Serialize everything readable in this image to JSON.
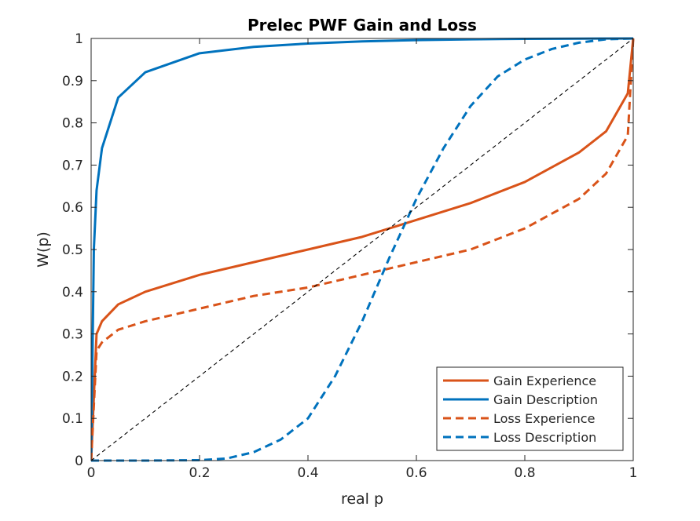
{
  "chart_data": {
    "type": "line",
    "title": "Prelec PWF Gain and Loss",
    "xlabel": "real p",
    "ylabel": "W(p)",
    "xlim": [
      0,
      1
    ],
    "ylim": [
      0,
      1
    ],
    "x_ticks": [
      "0",
      "0.2",
      "0.4",
      "0.6",
      "0.8",
      "1"
    ],
    "y_ticks": [
      "0",
      "0.1",
      "0.2",
      "0.3",
      "0.4",
      "0.5",
      "0.6",
      "0.7",
      "0.8",
      "0.9",
      "1"
    ],
    "grid": false,
    "legend_position": "bottom-right",
    "series": [
      {
        "name": "Gain Experience",
        "color": "#D95319",
        "line_style": "solid",
        "x": [
          0,
          0.01,
          0.02,
          0.05,
          0.1,
          0.2,
          0.3,
          0.4,
          0.5,
          0.6,
          0.7,
          0.8,
          0.9,
          0.95,
          0.99,
          1
        ],
        "y": [
          0,
          0.3,
          0.33,
          0.37,
          0.4,
          0.44,
          0.47,
          0.5,
          0.53,
          0.57,
          0.61,
          0.66,
          0.73,
          0.78,
          0.87,
          1
        ]
      },
      {
        "name": "Gain Description",
        "color": "#0072BD",
        "line_style": "solid",
        "x": [
          0,
          0.005,
          0.01,
          0.02,
          0.05,
          0.1,
          0.2,
          0.3,
          0.4,
          0.5,
          0.6,
          0.7,
          0.8,
          0.9,
          1
        ],
        "y": [
          0,
          0.5,
          0.64,
          0.74,
          0.86,
          0.92,
          0.965,
          0.98,
          0.988,
          0.993,
          0.996,
          0.998,
          0.999,
          0.9995,
          1
        ]
      },
      {
        "name": "Loss Experience",
        "color": "#D95319",
        "line_style": "dashed",
        "x": [
          0,
          0.01,
          0.02,
          0.05,
          0.1,
          0.2,
          0.3,
          0.4,
          0.5,
          0.6,
          0.7,
          0.8,
          0.9,
          0.95,
          0.99,
          1
        ],
        "y": [
          0,
          0.26,
          0.28,
          0.31,
          0.33,
          0.36,
          0.39,
          0.41,
          0.44,
          0.47,
          0.5,
          0.55,
          0.62,
          0.68,
          0.77,
          1
        ]
      },
      {
        "name": "Loss Description",
        "color": "#0072BD",
        "line_style": "dashed",
        "x": [
          0,
          0.1,
          0.2,
          0.25,
          0.3,
          0.35,
          0.4,
          0.45,
          0.5,
          0.55,
          0.6,
          0.65,
          0.7,
          0.75,
          0.8,
          0.85,
          0.9,
          0.95,
          1
        ],
        "y": [
          0,
          0,
          0.001,
          0.005,
          0.02,
          0.05,
          0.1,
          0.2,
          0.33,
          0.48,
          0.62,
          0.74,
          0.84,
          0.91,
          0.95,
          0.975,
          0.99,
          0.998,
          1
        ]
      },
      {
        "color": "#000000",
        "line_style": "dashed",
        "x": [
          0,
          1
        ],
        "y": [
          0,
          1
        ]
      }
    ]
  }
}
